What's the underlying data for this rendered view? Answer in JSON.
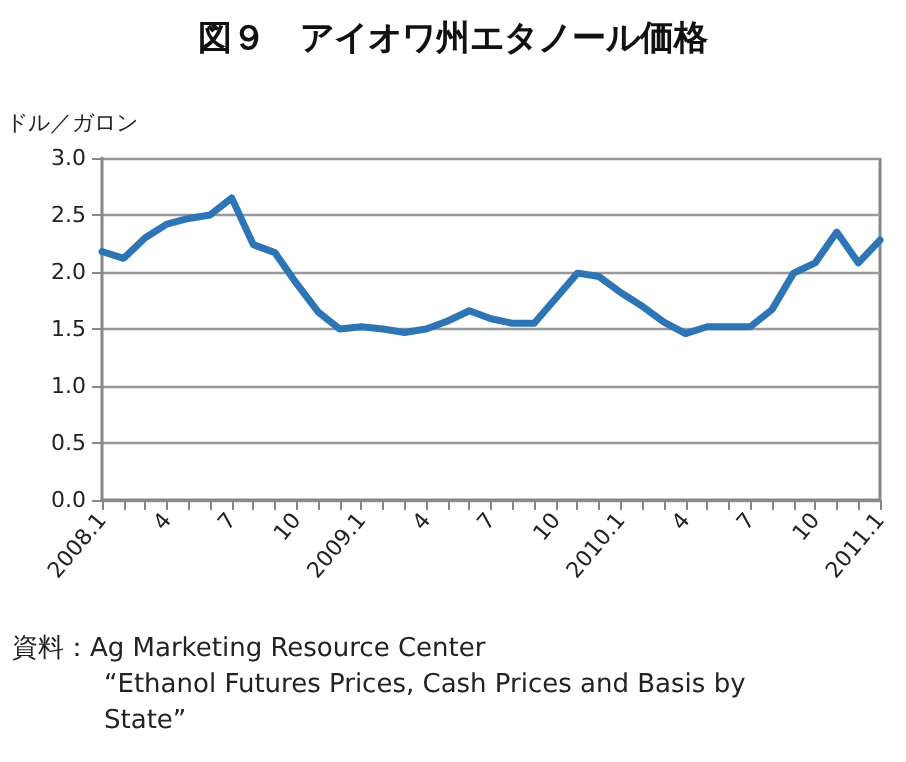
{
  "chart_data": {
    "type": "line",
    "title": "図９　アイオワ州エタノール価格",
    "ylabel": "ドル／ガロン",
    "categories": [
      "2008.1",
      null,
      null,
      "4",
      null,
      null,
      "7",
      null,
      null,
      "10",
      null,
      null,
      "2009.1",
      null,
      null,
      "4",
      null,
      null,
      "7",
      null,
      null,
      "10",
      null,
      null,
      "2010.1",
      null,
      null,
      "4",
      null,
      null,
      "7",
      null,
      null,
      "10",
      null,
      null,
      "2011.1"
    ],
    "series": [
      {
        "color": "#2e75b6",
        "values": [
          2.18,
          2.12,
          2.3,
          2.42,
          2.47,
          2.5,
          2.65,
          2.24,
          2.17,
          1.9,
          1.65,
          1.5,
          1.52,
          1.5,
          1.47,
          1.5,
          1.57,
          1.66,
          1.59,
          1.55,
          1.55,
          1.77,
          1.99,
          1.96,
          1.82,
          1.7,
          1.56,
          1.46,
          1.52,
          1.52,
          1.52,
          1.67,
          1.99,
          2.08,
          2.35,
          2.08,
          2.28
        ]
      }
    ],
    "ylim": [
      0,
      3
    ],
    "yticks": [
      {
        "value": 0,
        "label": "0.0"
      },
      {
        "value": 0.5,
        "label": "0.5"
      },
      {
        "value": 1,
        "label": "1.0"
      },
      {
        "value": 1.5,
        "label": "1.5"
      },
      {
        "value": 2,
        "label": "2.0"
      },
      {
        "value": 2.5,
        "label": "2.5"
      },
      {
        "value": 3,
        "label": "3.0"
      }
    ],
    "grid": "y",
    "marker": "none",
    "line_style": "solid",
    "annotations": [
      "資料：Ag Marketing Resource Center",
      "“Ethanol Futures Prices, Cash Prices and Basis by",
      "State”"
    ]
  }
}
